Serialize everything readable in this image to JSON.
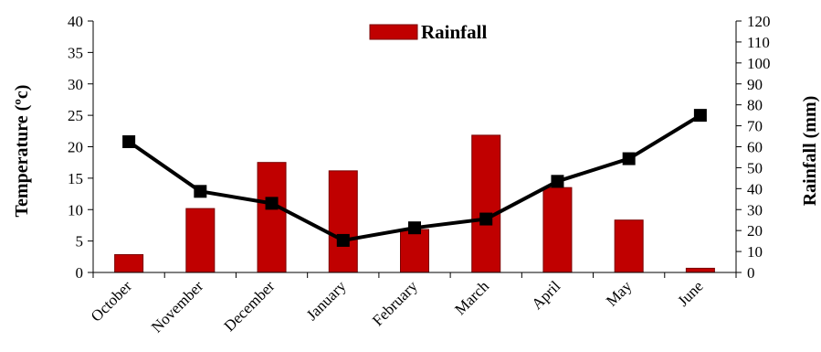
{
  "chart_data": {
    "type": "bar",
    "categories": [
      "October",
      "November",
      "December",
      "January",
      "February",
      "March",
      "April",
      "May",
      "June"
    ],
    "series": [
      {
        "name": "Rainfall",
        "type": "bar",
        "axis": "right",
        "color": "#c00000",
        "values": [
          8.5,
          30.5,
          52.5,
          48.5,
          20.5,
          65.5,
          40.5,
          25.0,
          2.0
        ]
      },
      {
        "type": "line",
        "axis": "left",
        "color": "#000000",
        "values": [
          20.8,
          12.9,
          11.0,
          5.1,
          7.1,
          8.5,
          14.5,
          18.1,
          25.0
        ]
      }
    ],
    "ylabel": "Temperature (ºc)",
    "y2label": "Rainfall (mm)",
    "ylim": [
      0,
      40
    ],
    "y2lim": [
      0,
      120
    ],
    "yticks": [
      "0",
      "5",
      "10",
      "15",
      "20",
      "25",
      "30",
      "35",
      "40"
    ],
    "y2ticks": [
      "0",
      "10",
      "20",
      "30",
      "40",
      "50",
      "60",
      "70",
      "80",
      "90",
      "100",
      "110",
      "120"
    ],
    "legend": {
      "label": "Rainfall",
      "placement": "top"
    },
    "grid": false
  }
}
